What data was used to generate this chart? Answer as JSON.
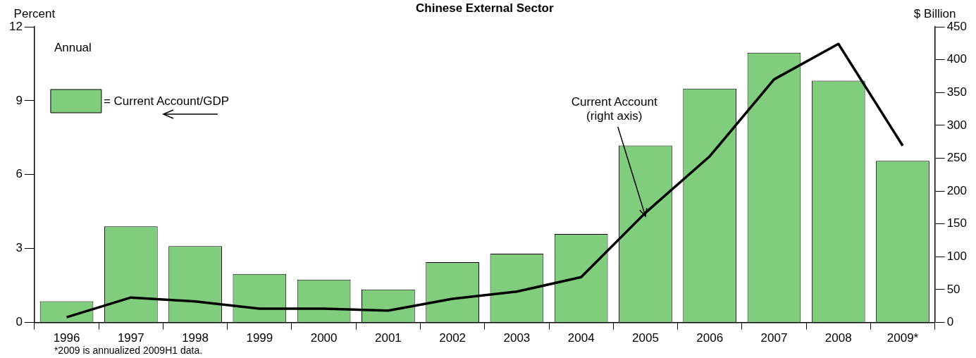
{
  "chart_data": {
    "type": "bar",
    "title": "Chinese External Sector",
    "ylabel": "Percent",
    "y2label": "$ Billion",
    "categories": [
      "1996",
      "1997",
      "1998",
      "1999",
      "2000",
      "2001",
      "2002",
      "2003",
      "2004",
      "2005",
      "2006",
      "2007",
      "2008",
      "2009*"
    ],
    "series": [
      {
        "name": "= Current Account/GDP",
        "color": "#80cd7d",
        "values": [
          0.86,
          3.9,
          3.1,
          1.97,
          1.74,
          1.34,
          2.45,
          2.79,
          3.59,
          7.18,
          9.49,
          10.95,
          9.81,
          6.56
        ]
      },
      {
        "name": "Current Account\n(right axis)",
        "type": "line",
        "axis": "y2",
        "color": "#000000",
        "values": [
          8,
          38,
          32,
          21,
          21,
          18,
          36,
          47,
          69,
          167,
          253,
          370,
          424,
          269
        ]
      }
    ],
    "ylim": [
      0,
      12
    ],
    "yticks": [
      0,
      3,
      6,
      9,
      12
    ],
    "y2lim": [
      0,
      450
    ],
    "y2ticks": [
      0,
      50,
      100,
      150,
      200,
      250,
      300,
      350,
      400,
      450
    ],
    "legend": "top left",
    "grid": false,
    "marker": "none",
    "line_style": "solid",
    "annotations": [
      "Annual",
      "*2009 is annualized 2009H1 data."
    ]
  }
}
